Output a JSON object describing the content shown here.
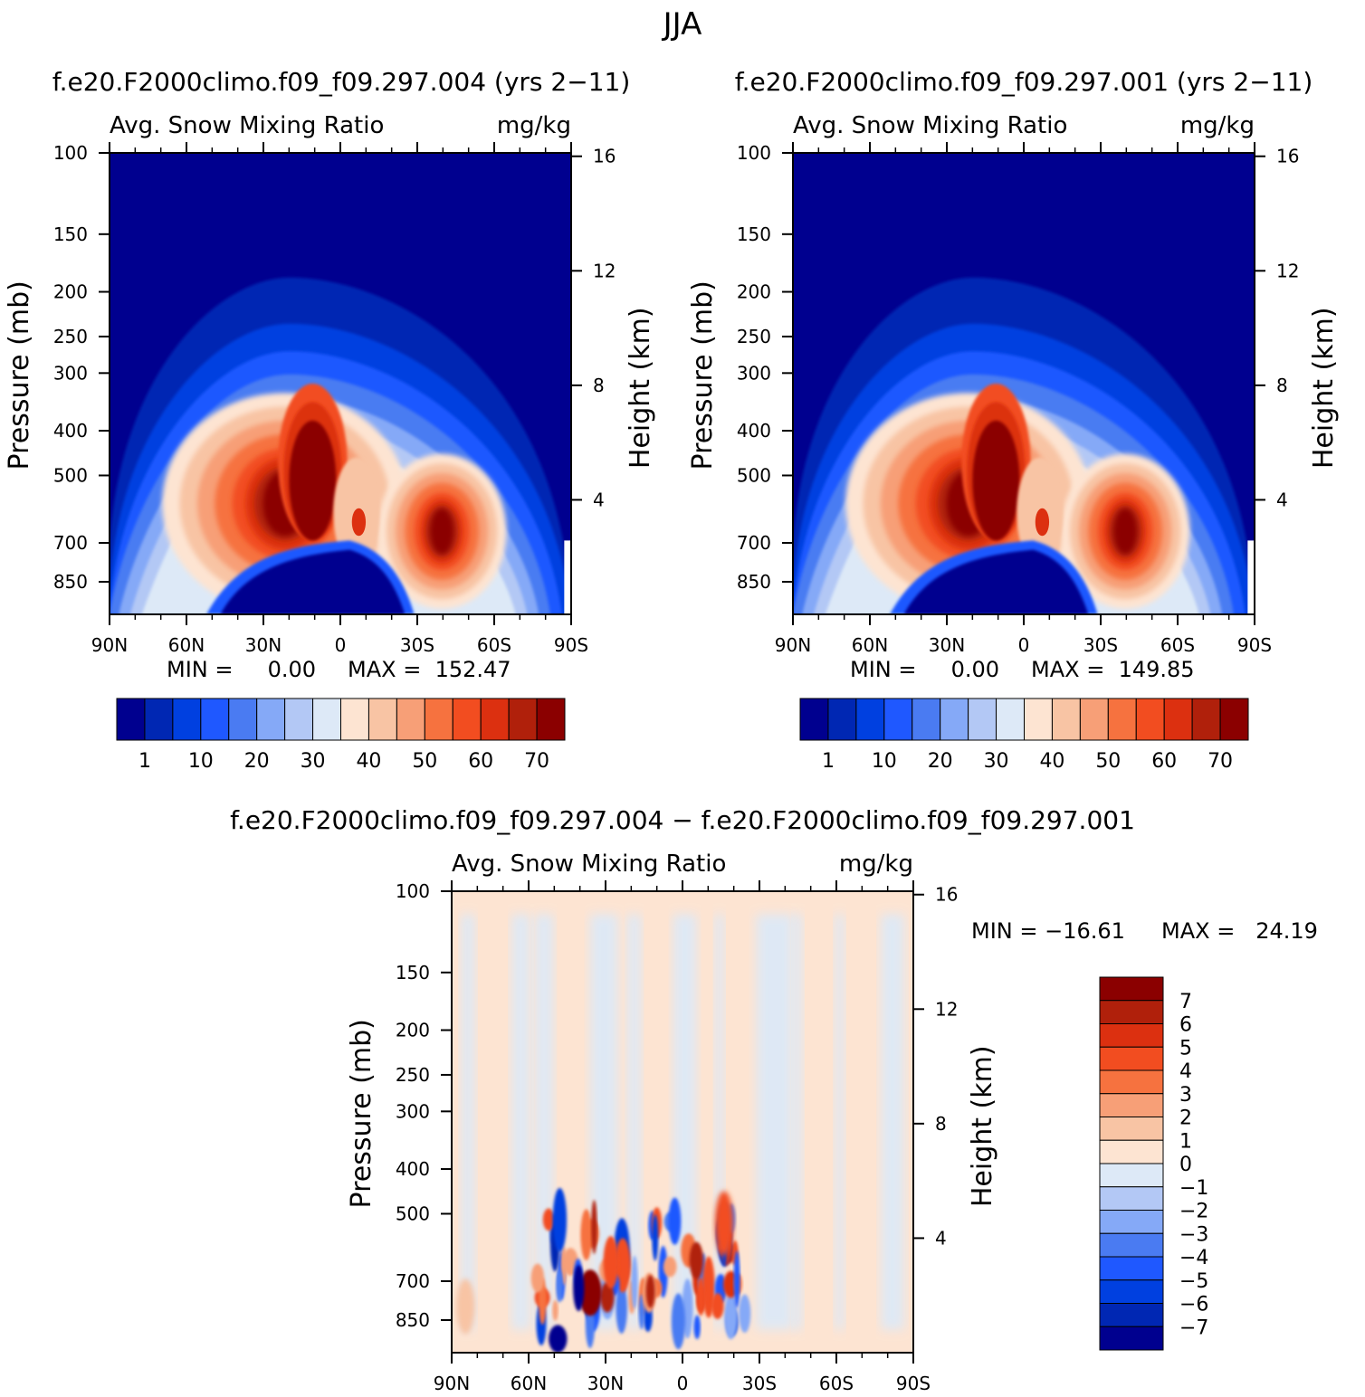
{
  "figure": {
    "season_title": "JJA"
  },
  "colors": {
    "frame": "#000000",
    "abs_palette": [
      "#00008f",
      "#0027b3",
      "#0040e0",
      "#1f58ff",
      "#4a7bf2",
      "#85a9f7",
      "#b3c8f5",
      "#dde9f7",
      "#fde4d2",
      "#f8c4a4",
      "#f79f77",
      "#f6723f",
      "#f24d20",
      "#dc3010",
      "#b0200b",
      "#8b0000"
    ],
    "diff_palette": [
      "#00008f",
      "#0027b3",
      "#0040e0",
      "#1f58ff",
      "#4a7bf2",
      "#85a9f7",
      "#b3c8f5",
      "#dde9f7",
      "#fde4d2",
      "#f8c4a4",
      "#f79f77",
      "#f6723f",
      "#f24d20",
      "#dc3010",
      "#b0200b",
      "#8b0000"
    ]
  },
  "chart_data": [
    {
      "type": "heatmap",
      "case_title": "f.e20.F2000climo.f09_f09.297.004 (yrs 2−11)",
      "left_string": "Avg. Snow Mixing Ratio",
      "right_string": "mg/kg",
      "xlabel": "",
      "ylabel": "Pressure (mb)",
      "y2label": "Height (km)",
      "x_ticks": [
        "90N",
        "60N",
        "30N",
        "0",
        "30S",
        "60S",
        "90S"
      ],
      "y_ticks": [
        100,
        150,
        200,
        250,
        300,
        400,
        500,
        700,
        850
      ],
      "y_range": [
        100,
        1000
      ],
      "y2_ticks": [
        16,
        12,
        8,
        4
      ],
      "min_text": "MIN =     0.00",
      "max_text": "MAX =  152.47",
      "min": 0.0,
      "max": 152.47,
      "colorbar_labels": [
        "1",
        "10",
        "20",
        "30",
        "40",
        "50",
        "60",
        "70"
      ]
    },
    {
      "type": "heatmap",
      "case_title": "f.e20.F2000climo.f09_f09.297.001 (yrs 2−11)",
      "left_string": "Avg. Snow Mixing Ratio",
      "right_string": "mg/kg",
      "xlabel": "",
      "ylabel": "Pressure (mb)",
      "y2label": "Height (km)",
      "x_ticks": [
        "90N",
        "60N",
        "30N",
        "0",
        "30S",
        "60S",
        "90S"
      ],
      "y_ticks": [
        100,
        150,
        200,
        250,
        300,
        400,
        500,
        700,
        850
      ],
      "y_range": [
        100,
        1000
      ],
      "y2_ticks": [
        16,
        12,
        8,
        4
      ],
      "min_text": "MIN =     0.00",
      "max_text": "MAX =  149.85",
      "min": 0.0,
      "max": 149.85,
      "colorbar_labels": [
        "1",
        "10",
        "20",
        "30",
        "40",
        "50",
        "60",
        "70"
      ]
    },
    {
      "type": "heatmap",
      "case_title": "f.e20.F2000climo.f09_f09.297.004 − f.e20.F2000climo.f09_f09.297.001",
      "left_string": "Avg. Snow Mixing Ratio",
      "right_string": "mg/kg",
      "xlabel": "",
      "ylabel": "Pressure (mb)",
      "y2label": "Height (km)",
      "x_ticks": [
        "90N",
        "60N",
        "30N",
        "0",
        "30S",
        "60S",
        "90S"
      ],
      "y_ticks": [
        100,
        150,
        200,
        250,
        300,
        400,
        500,
        700,
        850
      ],
      "y_range": [
        100,
        1000
      ],
      "y2_ticks": [
        16,
        12,
        8,
        4
      ],
      "min_text": "MIN = −16.61",
      "max_text": "MAX =   24.19",
      "min": -16.61,
      "max": 24.19,
      "colorbar_labels": [
        "7",
        "6",
        "5",
        "4",
        "3",
        "2",
        "1",
        "0",
        "−1",
        "−2",
        "−3",
        "−4",
        "−5",
        "−6",
        "−7"
      ]
    }
  ]
}
